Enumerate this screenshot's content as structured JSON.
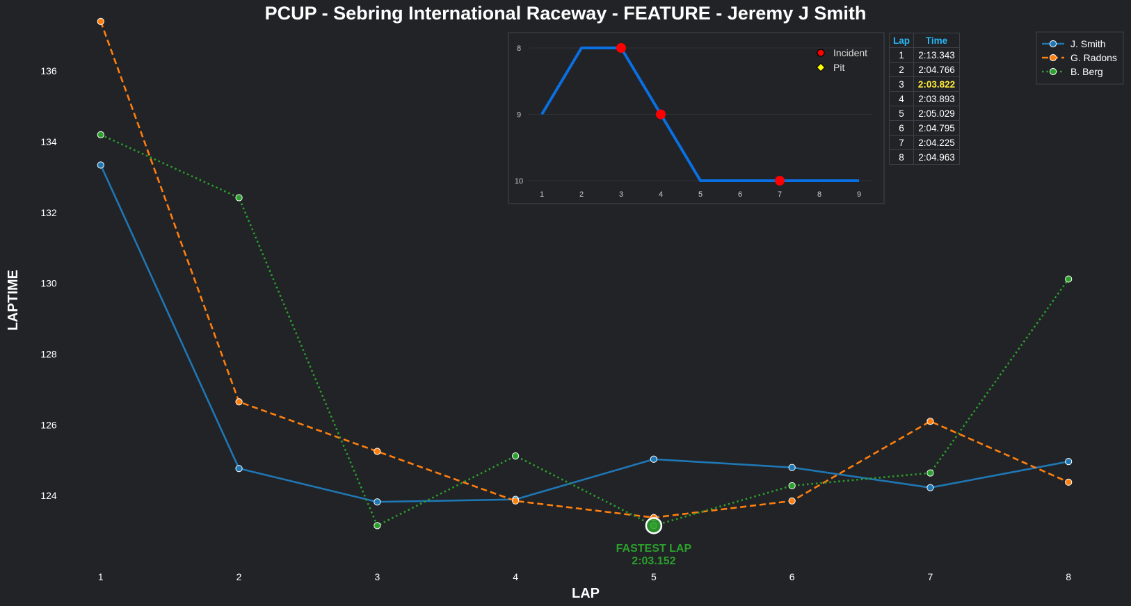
{
  "title": "PCUP - Sebring International Raceway - FEATURE - Jeremy J Smith",
  "chart_data": [
    {
      "type": "line",
      "title": "PCUP - Sebring International Raceway - FEATURE - Jeremy J Smith",
      "xlabel": "LAP",
      "ylabel": "LAPTIME",
      "x": [
        1,
        2,
        3,
        4,
        5,
        6,
        7,
        8
      ],
      "x_ticks": [
        "1",
        "2",
        "3",
        "4",
        "5",
        "6",
        "7",
        "8"
      ],
      "y_ticks": [
        "124",
        "126",
        "128",
        "130",
        "132",
        "134",
        "136"
      ],
      "xlim": [
        0.85,
        8.15
      ],
      "ylim": [
        122.0,
        137.3
      ],
      "grid": false,
      "legend": "top-right",
      "series": [
        {
          "name": "J. Smith",
          "color": "#1f77b4",
          "style": "solid",
          "values": [
            133.343,
            124.766,
            123.822,
            123.893,
            125.029,
            124.795,
            124.225,
            124.963
          ]
        },
        {
          "name": "G. Radons",
          "color": "#ff7f0e",
          "style": "dashed",
          "values": [
            137.4,
            126.65,
            125.25,
            123.85,
            123.38,
            123.85,
            126.1,
            124.38
          ]
        },
        {
          "name": "B. Berg",
          "color": "#2ca02c",
          "style": "dotted",
          "values": [
            134.2,
            132.42,
            123.152,
            125.12,
            123.152,
            124.28,
            124.64,
            130.12
          ]
        }
      ],
      "annotation": {
        "line1": "FASTEST LAP",
        "line2": "2:03.152",
        "x": 5,
        "y": 123.152
      }
    },
    {
      "type": "line",
      "subject": "position",
      "x": [
        1,
        2,
        3,
        4,
        5,
        6,
        7,
        8,
        9
      ],
      "x_ticks": [
        "1",
        "2",
        "3",
        "4",
        "5",
        "6",
        "7",
        "8",
        "9"
      ],
      "y_ticks": [
        "8",
        "9",
        "10"
      ],
      "ylim": [
        8,
        10
      ],
      "y_inverted": true,
      "xlim": [
        1,
        9
      ],
      "grid": true,
      "legend": "top-right",
      "values": [
        9,
        8,
        8,
        9,
        10,
        10,
        10,
        10,
        10
      ],
      "color": "#0a6fe0",
      "incidents": [
        {
          "x": 3,
          "y": 8
        },
        {
          "x": 4,
          "y": 9
        },
        {
          "x": 7,
          "y": 10
        }
      ],
      "pits": [],
      "legend_items": [
        {
          "label": "Incident",
          "color": "#ff0000",
          "marker": "circle"
        },
        {
          "label": "Pit",
          "color": "#ffff00",
          "marker": "diamond"
        }
      ]
    }
  ],
  "lap_table": {
    "headers": [
      "Lap",
      "Time"
    ],
    "rows": [
      {
        "lap": "1",
        "time": "2:13.343"
      },
      {
        "lap": "2",
        "time": "2:04.766"
      },
      {
        "lap": "3",
        "time": "2:03.822"
      },
      {
        "lap": "4",
        "time": "2:03.893"
      },
      {
        "lap": "5",
        "time": "2:05.029"
      },
      {
        "lap": "6",
        "time": "2:04.795"
      },
      {
        "lap": "7",
        "time": "2:04.225"
      },
      {
        "lap": "8",
        "time": "2:04.963"
      }
    ],
    "best_lap": "3",
    "best_color": "#ffeb3b",
    "header_color": "#29b6f6"
  },
  "colors": {
    "background": "#212327",
    "text": "#ffffff",
    "frame": "#3d4147"
  }
}
